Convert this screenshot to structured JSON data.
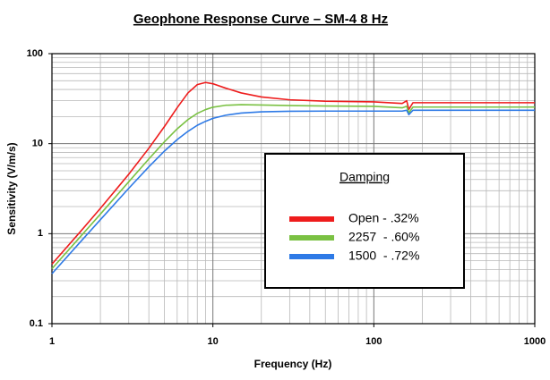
{
  "chart_data": {
    "type": "line",
    "title": "Geophone Response Curve – SM-4 8 Hz",
    "x_label": "Frequency (Hz)",
    "y_label": "Sensitivity (V/m/s)",
    "x_scale": "log",
    "y_scale": "log",
    "grid": true,
    "legend_title": "Damping",
    "legend_position": "lower right",
    "x": [
      1,
      1.5,
      2,
      3,
      4,
      5,
      6,
      7,
      8,
      9,
      10,
      12,
      15,
      20,
      30,
      50,
      100,
      150,
      160,
      165,
      175,
      1000
    ],
    "series": [
      {
        "name": "Open - .32%",
        "color": "#ee1c1c",
        "values": [
          0.459,
          1.05,
          1.91,
          4.57,
          8.89,
          15.5,
          25.1,
          36.6,
          45.3,
          47.8,
          46.3,
          41.4,
          36.6,
          33.0,
          30.7,
          29.6,
          29.1,
          28,
          30,
          24,
          28.5,
          28.5
        ]
      },
      {
        "name": "2257  - .60%",
        "color": "#7ac143",
        "values": [
          0.408,
          0.923,
          1.65,
          3.77,
          6.77,
          10.5,
          14.6,
          18.5,
          21.7,
          23.9,
          25.4,
          26.7,
          27.1,
          26.9,
          26.5,
          26.2,
          26.0,
          25,
          26,
          22,
          25.5,
          25.5
        ]
      },
      {
        "name": "1500  - .72%",
        "color": "#2e7ae6",
        "values": [
          0.359,
          0.807,
          1.43,
          3.19,
          5.53,
          8.27,
          11.1,
          13.7,
          16.0,
          17.7,
          19.1,
          20.7,
          21.9,
          22.6,
          22.9,
          23.0,
          23.0,
          23,
          23.5,
          21,
          23.5,
          23.5
        ]
      }
    ],
    "xlim": [
      1,
      1000
    ],
    "xticks": [
      1,
      10,
      100,
      1000
    ],
    "ylim": [
      0.1,
      100
    ],
    "yticks": [
      0.1,
      1,
      10,
      100
    ]
  }
}
